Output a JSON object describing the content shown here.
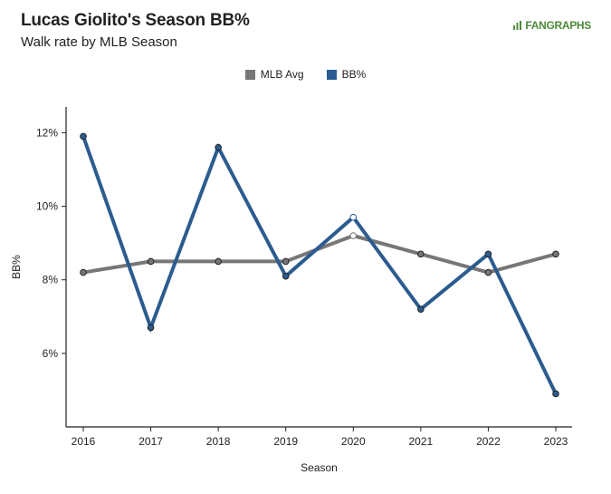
{
  "header": {
    "title": "Lucas Giolito's Season BB%",
    "subtitle": "Walk rate by MLB Season",
    "logo_text": "FANGRAPHS"
  },
  "chart_data": {
    "type": "line",
    "x": [
      "2016",
      "2017",
      "2018",
      "2019",
      "2020",
      "2021",
      "2022",
      "2023"
    ],
    "series": [
      {
        "name": "MLB Avg",
        "color": "#777777",
        "values": [
          8.2,
          8.5,
          8.5,
          8.5,
          9.2,
          8.7,
          8.2,
          8.7
        ]
      },
      {
        "name": "BB%",
        "color": "#2c5c8f",
        "values": [
          11.9,
          6.7,
          11.6,
          8.1,
          9.7,
          7.2,
          8.7,
          4.9
        ]
      }
    ],
    "xlabel": "Season",
    "ylabel": "BB%",
    "yticks": [
      6,
      8,
      10,
      12
    ],
    "ytick_labels": [
      "6%",
      "8%",
      "10%",
      "12%"
    ],
    "ylim": [
      4,
      12.7
    ],
    "grid": false,
    "legend_position": "top-center",
    "hollow_marker_index": 4
  }
}
